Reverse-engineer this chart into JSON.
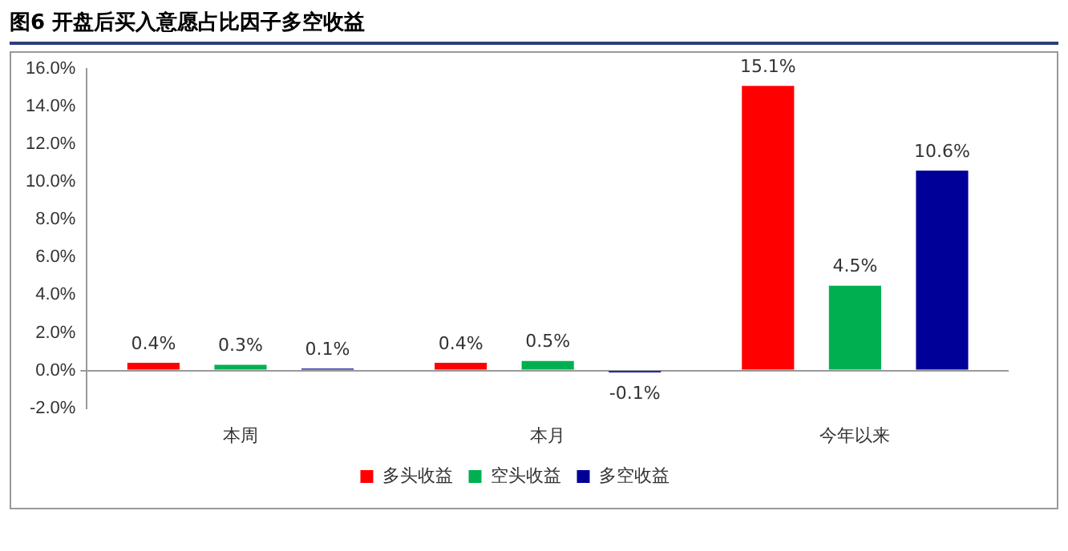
{
  "chart_data": {
    "type": "bar",
    "title": "图6  开盘后买入意愿占比因子多空收益",
    "categories": [
      "本周",
      "本月",
      "今年以来"
    ],
    "series": [
      {
        "name": "多头收益",
        "color": "#ff0000",
        "values": [
          0.4,
          0.4,
          15.1
        ],
        "value_labels": [
          "0.4%",
          "0.4%",
          "15.1%"
        ]
      },
      {
        "name": "空头收益",
        "color": "#00b050",
        "values": [
          0.3,
          0.5,
          4.5
        ],
        "value_labels": [
          "0.3%",
          "0.5%",
          "4.5%"
        ]
      },
      {
        "name": "多空收益",
        "color": "#000099",
        "values": [
          0.1,
          -0.1,
          10.6
        ],
        "value_labels": [
          "0.1%",
          "-0.1%",
          "10.6%"
        ]
      }
    ],
    "ylim": [
      -2,
      16
    ],
    "yticks": [
      {
        "value": -2,
        "label": "-2.0%"
      },
      {
        "value": 0,
        "label": "0.0%"
      },
      {
        "value": 2,
        "label": "2.0%"
      },
      {
        "value": 4,
        "label": "4.0%"
      },
      {
        "value": 6,
        "label": "6.0%"
      },
      {
        "value": 8,
        "label": "8.0%"
      },
      {
        "value": 10,
        "label": "10.0%"
      },
      {
        "value": 12,
        "label": "12.0%"
      },
      {
        "value": 14,
        "label": "14.0%"
      },
      {
        "value": 16,
        "label": "16.0%"
      }
    ],
    "legend": "bottom"
  }
}
